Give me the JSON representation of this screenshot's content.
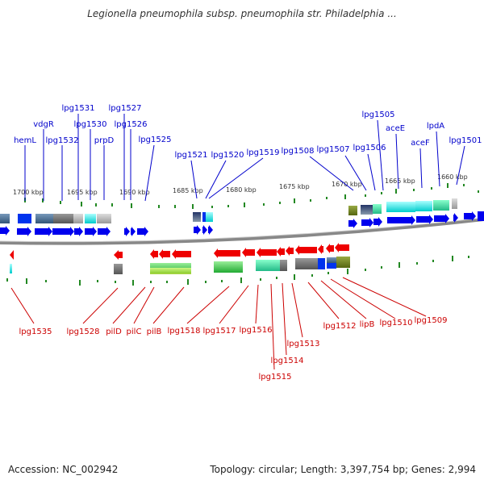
{
  "title": "Legionella pneumophila subsp. pneumophila str. Philadelphia ...",
  "footer": {
    "accession": "Accession: NC_002942",
    "summary": "Topology: circular; Length: 3,397,754 bp; Genes: 2,994"
  },
  "colors": {
    "top_label": "#0000cc",
    "bottom_label": "#cc0000",
    "forward_arrow": "#0000ee",
    "reverse_arrow": "#ee0000",
    "tick": "#228822",
    "backbone": "#999999"
  },
  "scale_labels": [
    "1700 kbp",
    "1695 kbp",
    "1690 kbp",
    "1685 kbp",
    "1680 kbp",
    "1675 kbp",
    "1670 kbp",
    "1665 kbp",
    "1660 kbp"
  ],
  "top_genes": [
    "hemL",
    "vdgR",
    "lpg1532",
    "lpg1531",
    "lpg1530",
    "prpD",
    "lpg1527",
    "lpg1526",
    "lpg1525",
    "lpg1521",
    "lpg1520",
    "lpg1519",
    "lpg1508",
    "lpg1507",
    "lpg1506",
    "lpg1505",
    "aceE",
    "aceF",
    "lpdA",
    "lpg1501"
  ],
  "bottom_genes": [
    "lpg1535",
    "lpg1528",
    "pilD",
    "pilC",
    "pilB",
    "lpg1518",
    "lpg1517",
    "lpg1516",
    "lpg1515",
    "lpg1514",
    "lpg1513",
    "lpg1512",
    "lipB",
    "lpg1510",
    "lpg1509"
  ]
}
